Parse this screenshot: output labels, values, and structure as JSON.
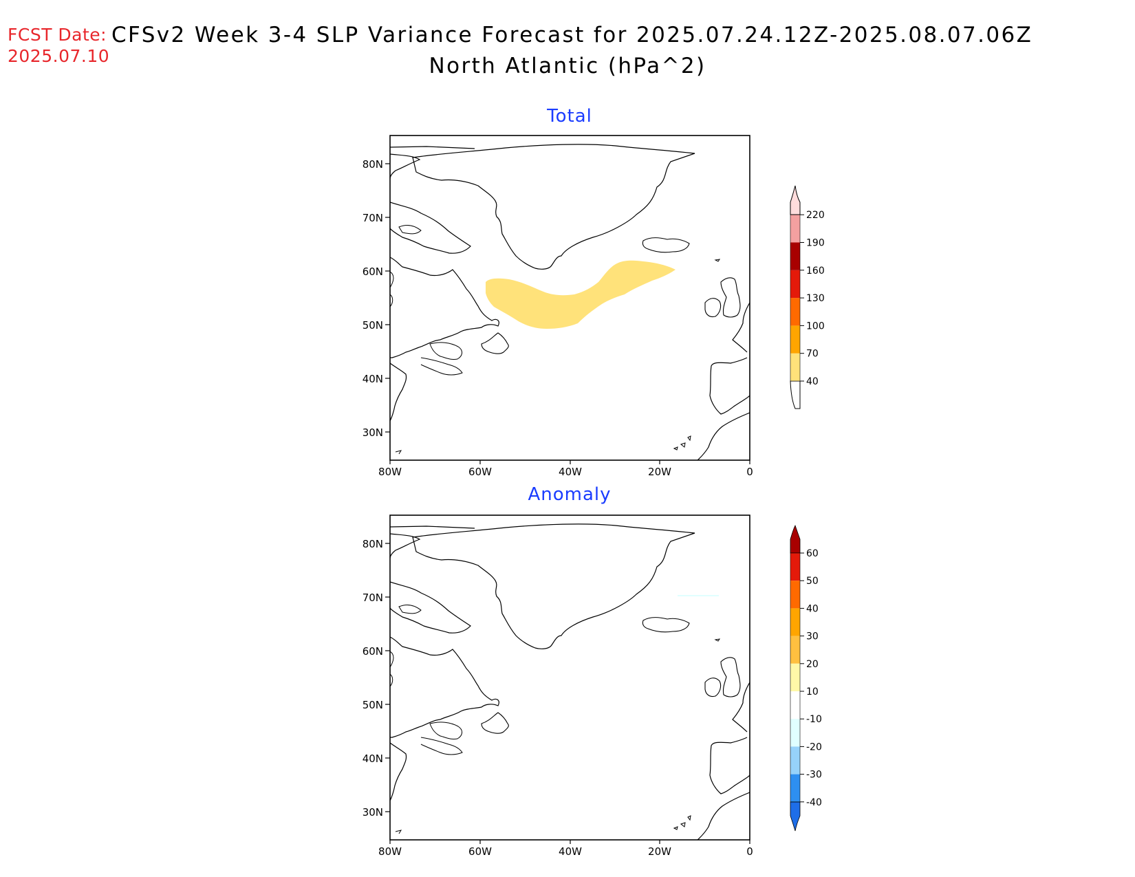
{
  "header": {
    "fcst_label": "FCST Date:",
    "fcst_date": "2025.07.10",
    "title": "CFSv2 Week 3-4 SLP Variance Forecast for 2025.07.24.12Z-2025.08.07.06Z",
    "subtitle": "North Atlantic (hPa^2)"
  },
  "panels": [
    {
      "title": "Total",
      "lat_ticks": [
        "80N",
        "70N",
        "60N",
        "50N",
        "40N",
        "30N"
      ],
      "lon_ticks": [
        "80W",
        "60W",
        "40W",
        "20W",
        "0"
      ],
      "colorbar": {
        "labels": [
          "40",
          "70",
          "100",
          "130",
          "160",
          "190",
          "220"
        ],
        "colors": [
          "#ffe27a",
          "#ffa500",
          "#ff6a00",
          "#e41a0a",
          "#a80000",
          "#f4a0a0",
          "#ffdcdc"
        ]
      }
    },
    {
      "title": "Anomaly",
      "lat_ticks": [
        "80N",
        "70N",
        "60N",
        "50N",
        "40N",
        "30N"
      ],
      "lon_ticks": [
        "80W",
        "60W",
        "40W",
        "20W",
        "0"
      ],
      "colorbar": {
        "labels": [
          "60",
          "50",
          "40",
          "30",
          "20",
          "10",
          "-10",
          "-20",
          "-30",
          "-40"
        ],
        "colors": [
          "#a80000",
          "#e41a0a",
          "#ff6a00",
          "#ffa500",
          "#ffc040",
          "#fff8a8",
          "#ffffff",
          "#e0ffff",
          "#96d2fa",
          "#2e8ff0",
          "#1e6ee8"
        ]
      }
    }
  ],
  "legend_colors": {
    "total_shading": "#ffe27a",
    "anomaly_trace": "#e0ffff"
  }
}
